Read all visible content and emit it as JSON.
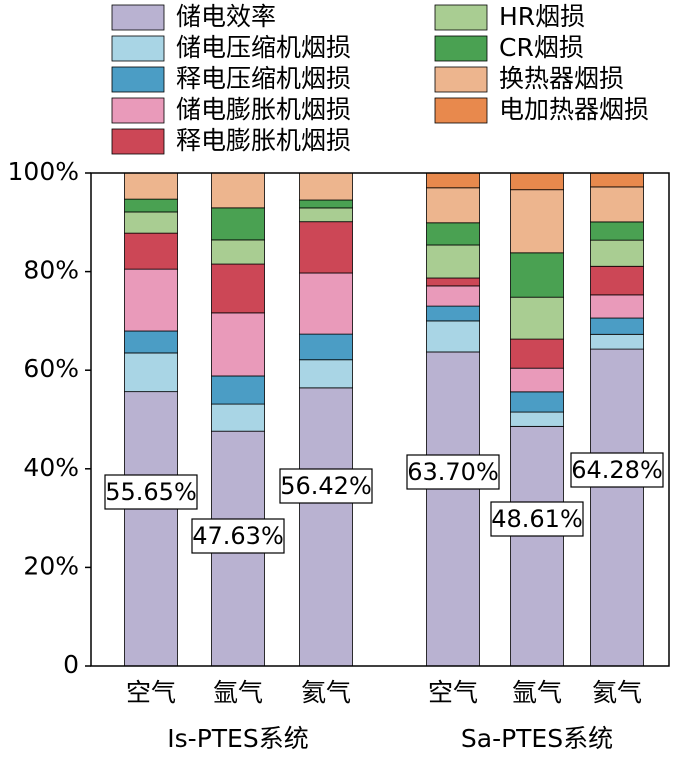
{
  "chart_data": {
    "type": "stacked_bar",
    "categories": [
      "空气",
      "氩气",
      "氦气",
      "空气",
      "氩气",
      "氦气"
    ],
    "groups": [
      "Is-PTES系统",
      "Sa-PTES系统"
    ],
    "series": [
      {
        "name": "储电效率",
        "color": "#b9b2d1",
        "values": [
          55.65,
          47.63,
          56.42,
          63.7,
          48.61,
          64.28
        ],
        "value_labels": [
          "55.65%",
          "47.63%",
          "56.42%",
          "63.70%",
          "48.61%",
          "64.28%"
        ]
      },
      {
        "name": "储电压缩机烟损",
        "color": "#a9d5e5",
        "values": [
          7.85,
          5.5,
          5.7,
          6.3,
          2.9,
          3.0
        ]
      },
      {
        "name": "释电压缩机烟损",
        "color": "#4b9dc5",
        "values": [
          4.45,
          5.7,
          5.2,
          3.0,
          4.1,
          3.3
        ]
      },
      {
        "name": "储电膨胀机烟损",
        "color": "#e99aba",
        "values": [
          12.55,
          12.8,
          12.4,
          4.1,
          4.8,
          4.7
        ]
      },
      {
        "name": "释电膨胀机烟损",
        "color": "#cc4756",
        "values": [
          7.3,
          9.9,
          10.4,
          1.6,
          5.9,
          5.8
        ]
      },
      {
        "name": "HR烟损",
        "color": "#a9cd92",
        "values": [
          4.3,
          4.9,
          2.8,
          6.7,
          8.5,
          5.3
        ]
      },
      {
        "name": "CR烟损",
        "color": "#4aa152",
        "values": [
          2.6,
          6.5,
          1.6,
          4.5,
          9.0,
          3.7
        ]
      },
      {
        "name": "换热器烟损",
        "color": "#edb58e",
        "values": [
          5.3,
          7.1,
          5.5,
          7.1,
          12.8,
          7.1
        ]
      },
      {
        "name": "电加热器烟损",
        "color": "#e8894d",
        "values": [
          0,
          0,
          0,
          3.0,
          3.4,
          2.8
        ]
      }
    ],
    "ylim": [
      0,
      100
    ],
    "yticks": [
      0,
      {
        "value": 20,
        "label": "20%"
      },
      {
        "value": 40,
        "label": "40%"
      },
      {
        "value": 60,
        "label": "60%"
      },
      {
        "value": 80,
        "label": "80%"
      },
      {
        "value": 100,
        "label": "100%"
      }
    ]
  }
}
